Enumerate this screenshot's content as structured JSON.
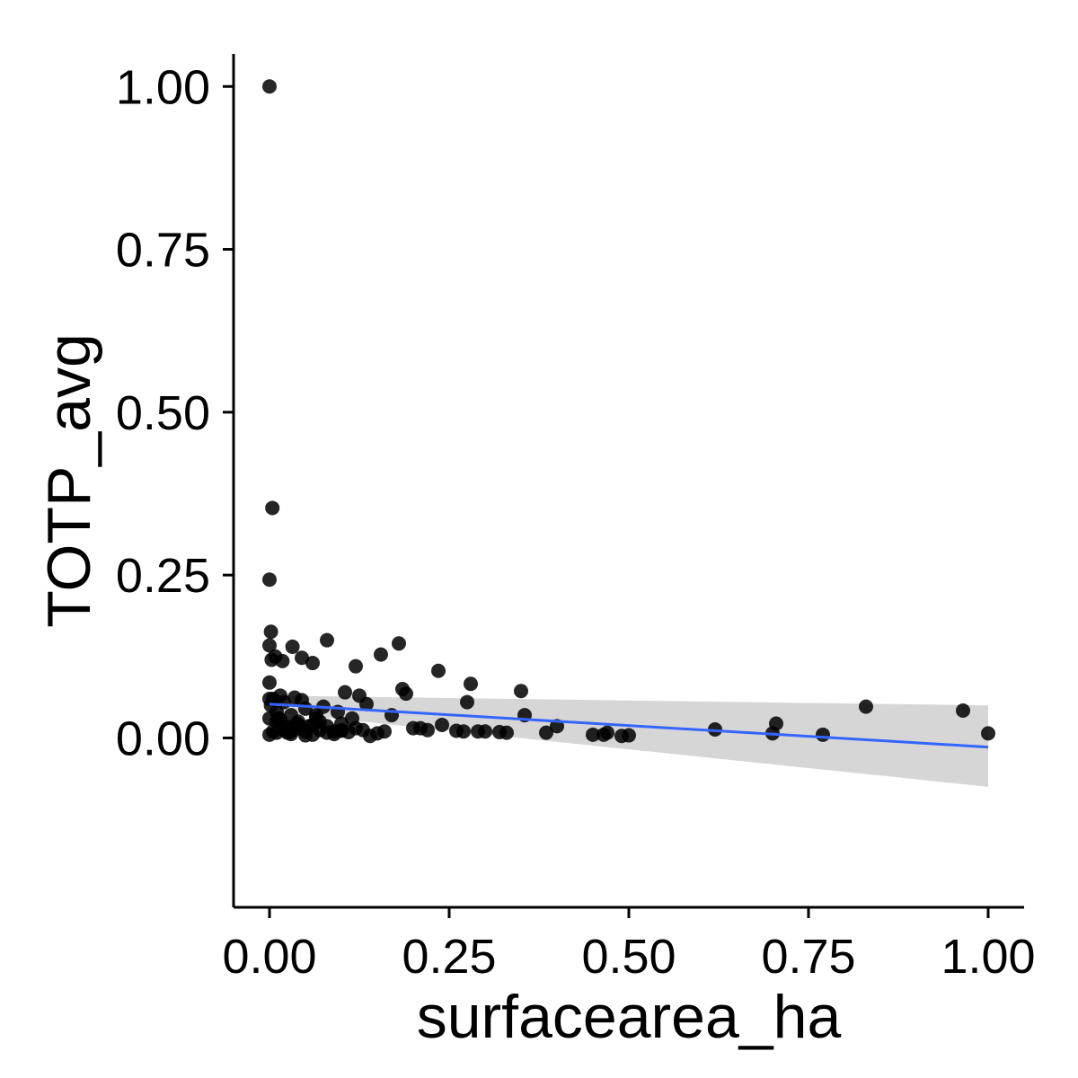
{
  "chart_data": {
    "type": "scatter",
    "xlabel": "surfacearea_ha",
    "ylabel": "TOTP_avg",
    "xlim": [
      -0.05,
      1.05
    ],
    "ylim": [
      -0.26,
      1.05
    ],
    "x_ticks": [
      0.0,
      0.25,
      0.5,
      0.75,
      1.0
    ],
    "x_tick_labels": [
      "0.00",
      "0.25",
      "0.50",
      "0.75",
      "1.00"
    ],
    "y_ticks": [
      0.0,
      0.25,
      0.5,
      0.75,
      1.0
    ],
    "y_tick_labels": [
      "0.00",
      "0.25",
      "0.50",
      "0.75",
      "1.00"
    ],
    "grid": false,
    "legend": "none",
    "colors": {
      "points": "#000000",
      "fit_line": "#3366FF",
      "confidence_band": "#999999"
    },
    "fit": {
      "method": "linear",
      "x": [
        0.0,
        1.0
      ],
      "y": [
        0.052,
        -0.014
      ],
      "band_lower": [
        0.04,
        -0.075
      ],
      "band_upper": [
        0.065,
        0.05
      ]
    },
    "points": {
      "x": [
        0.0,
        0.004,
        0.0,
        0.002,
        0.0,
        0.003,
        0.0,
        0.008,
        0.018,
        0.032,
        0.045,
        0.08,
        0.155,
        0.18,
        0.12,
        0.235,
        0.28,
        0.35,
        0.275,
        0.19,
        0.185,
        0.105,
        0.125,
        0.06,
        0.0,
        0.002,
        0.01,
        0.03,
        0.05,
        0.065,
        0.07,
        0.02,
        0.04,
        0.015,
        0.025,
        0.055,
        0.1,
        0.115,
        0.13,
        0.17,
        0.2,
        0.24,
        0.29,
        0.355,
        0.4,
        0.45,
        0.47,
        0.5,
        0.62,
        0.705,
        0.7,
        0.77,
        0.83,
        0.965,
        1.0,
        0.005,
        0.01,
        0.02,
        0.03,
        0.04,
        0.05,
        0.06,
        0.07,
        0.08,
        0.09,
        0.1,
        0.11,
        0.12,
        0.14,
        0.15,
        0.16,
        0.21,
        0.22,
        0.26,
        0.27,
        0.3,
        0.32,
        0.33,
        0.385,
        0.465,
        0.49,
        0.005,
        0.015,
        0.035,
        0.045,
        0.075,
        0.095,
        0.135,
        0.0,
        0.01,
        0.02,
        0.03,
        0.04,
        0.06,
        0.08,
        0.1,
        0.0,
        0.012,
        0.025,
        0.038,
        0.05,
        0.065,
        0.09
      ],
      "y": [
        1.0,
        0.353,
        0.243,
        0.163,
        0.142,
        0.12,
        0.085,
        0.125,
        0.118,
        0.14,
        0.123,
        0.15,
        0.128,
        0.145,
        0.11,
        0.103,
        0.083,
        0.072,
        0.055,
        0.068,
        0.075,
        0.07,
        0.065,
        0.115,
        0.06,
        0.05,
        0.04,
        0.035,
        0.045,
        0.03,
        0.025,
        0.055,
        0.02,
        0.028,
        0.015,
        0.018,
        0.022,
        0.03,
        0.012,
        0.035,
        0.015,
        0.02,
        0.01,
        0.035,
        0.018,
        0.005,
        0.008,
        0.004,
        0.013,
        0.022,
        0.007,
        0.005,
        0.048,
        0.042,
        0.007,
        0.01,
        0.008,
        0.012,
        0.006,
        0.015,
        0.01,
        0.005,
        0.012,
        0.008,
        0.006,
        0.011,
        0.009,
        0.015,
        0.003,
        0.007,
        0.01,
        0.015,
        0.012,
        0.011,
        0.01,
        0.01,
        0.009,
        0.008,
        0.008,
        0.005,
        0.003,
        0.06,
        0.065,
        0.062,
        0.058,
        0.048,
        0.04,
        0.052,
        0.03,
        0.025,
        0.02,
        0.01,
        0.025,
        0.02,
        0.018,
        0.012,
        0.005,
        0.03,
        0.008,
        0.022,
        0.004,
        0.035,
        0.01
      ]
    }
  }
}
